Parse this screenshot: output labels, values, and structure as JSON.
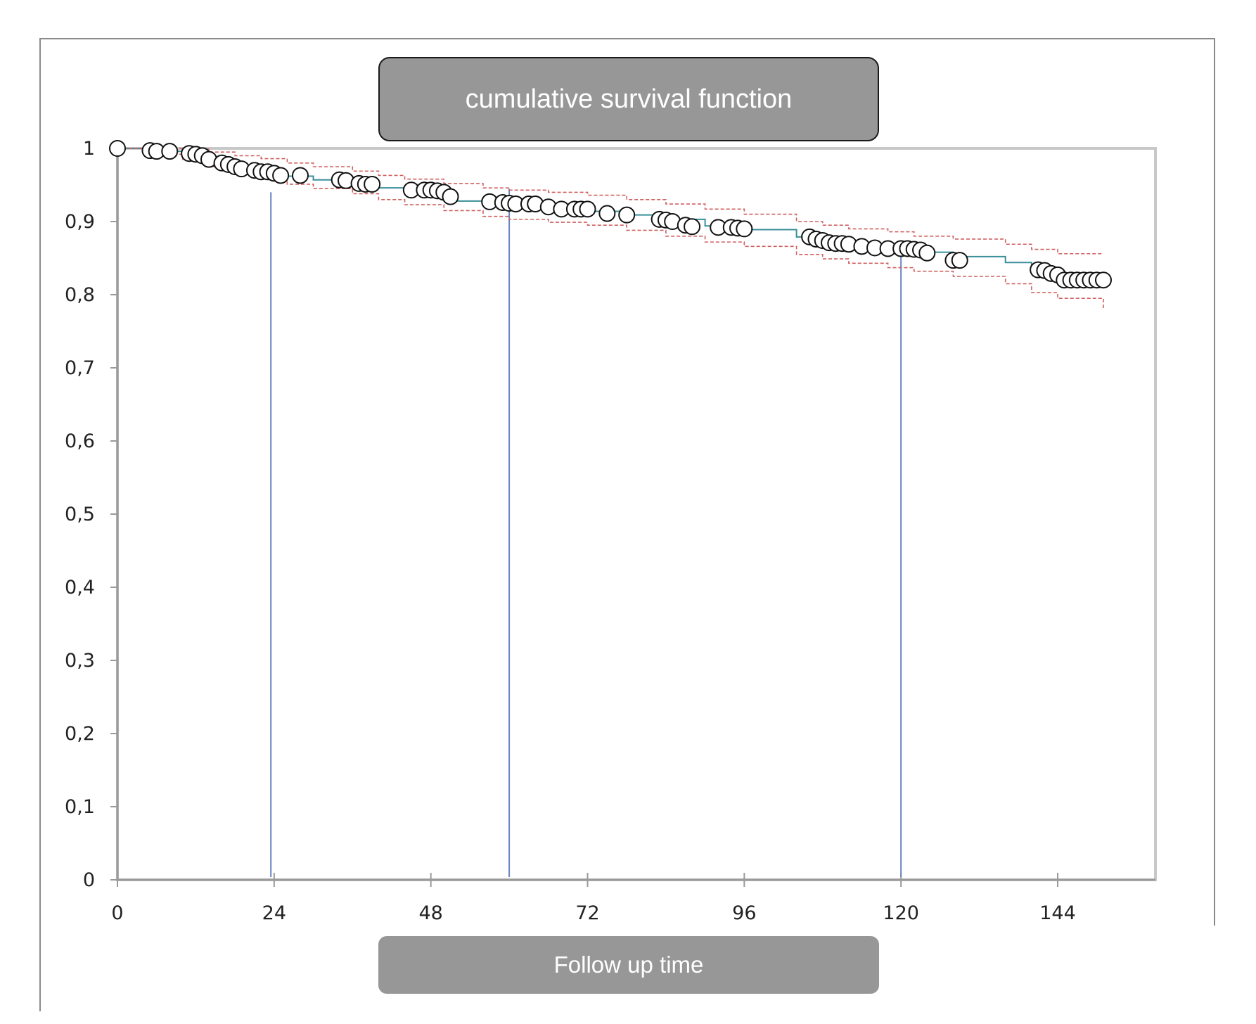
{
  "chart_data": {
    "type": "line",
    "title": "cumulative survival function",
    "xlabel": "Follow up time",
    "ylabel": "",
    "xlim": [
      0,
      160
    ],
    "ylim": [
      0,
      1
    ],
    "x_ticks": [
      0,
      24,
      48,
      72,
      96,
      120,
      144
    ],
    "x_tick_labels": [
      "0",
      "24",
      "48",
      "72",
      "96",
      "120",
      "144"
    ],
    "y_ticks": [
      0,
      0.1,
      0.2,
      0.3,
      0.4,
      0.5,
      0.6,
      0.7,
      0.8,
      0.9,
      1
    ],
    "y_tick_labels": [
      "0",
      "0,1",
      "0,2",
      "0,3",
      "0,4",
      "0,5",
      "0,6",
      "0,7",
      "0,8",
      "0,9",
      "1"
    ],
    "reference_lines_x": [
      23.5,
      60,
      120
    ],
    "colors": {
      "survival": "#3a8f9a",
      "ci": "#d06060",
      "reference": "#6b84c4",
      "marker_edge": "#111111",
      "marker_fill": "#ffffff",
      "axis": "#9a9a9a"
    },
    "series": [
      {
        "style": "step",
        "x": [
          0,
          6,
          10,
          14,
          16,
          19,
          22,
          25,
          30,
          36,
          40,
          44,
          50,
          52,
          56,
          60,
          66,
          72,
          78,
          84,
          90,
          96,
          104,
          108,
          112,
          118,
          122,
          128,
          136,
          140,
          144,
          151
        ],
        "y": [
          1.0,
          0.996,
          0.993,
          0.985,
          0.978,
          0.972,
          0.968,
          0.962,
          0.957,
          0.951,
          0.946,
          0.941,
          0.934,
          0.928,
          0.924,
          0.92,
          0.917,
          0.914,
          0.909,
          0.903,
          0.894,
          0.889,
          0.879,
          0.873,
          0.868,
          0.863,
          0.858,
          0.852,
          0.844,
          0.834,
          0.826,
          0.819
        ]
      },
      {
        "style": "dashed-step",
        "x": [
          0,
          6,
          10,
          14,
          18,
          22,
          26,
          30,
          36,
          40,
          44,
          50,
          56,
          60,
          66,
          72,
          78,
          84,
          90,
          96,
          104,
          108,
          112,
          118,
          122,
          128,
          136,
          140,
          144,
          151
        ],
        "y": [
          1.0,
          1.0,
          0.999,
          0.995,
          0.99,
          0.986,
          0.98,
          0.975,
          0.969,
          0.963,
          0.958,
          0.952,
          0.946,
          0.943,
          0.94,
          0.936,
          0.93,
          0.924,
          0.917,
          0.91,
          0.9,
          0.895,
          0.89,
          0.886,
          0.88,
          0.876,
          0.869,
          0.862,
          0.856,
          0.856
        ]
      },
      {
        "style": "dashed-step",
        "x": [
          0,
          6,
          10,
          14,
          18,
          22,
          26,
          30,
          36,
          40,
          44,
          50,
          56,
          60,
          66,
          72,
          78,
          84,
          90,
          96,
          104,
          108,
          112,
          118,
          122,
          128,
          136,
          140,
          144,
          151
        ],
        "y": [
          1.0,
          0.992,
          0.985,
          0.975,
          0.965,
          0.958,
          0.951,
          0.945,
          0.938,
          0.93,
          0.923,
          0.915,
          0.907,
          0.903,
          0.899,
          0.895,
          0.888,
          0.88,
          0.872,
          0.866,
          0.855,
          0.849,
          0.843,
          0.837,
          0.832,
          0.825,
          0.815,
          0.803,
          0.795,
          0.779
        ]
      }
    ],
    "markers": {
      "x": [
        0,
        5,
        6,
        8,
        11,
        12,
        13,
        14,
        16,
        17,
        18,
        19,
        21,
        22,
        23,
        24,
        25,
        28,
        34,
        35,
        37,
        38,
        39,
        45,
        47,
        48,
        49,
        50,
        51,
        57,
        59,
        60,
        61,
        63,
        64,
        66,
        68,
        70,
        71,
        72,
        75,
        78,
        83,
        84,
        85,
        87,
        88,
        92,
        94,
        95,
        96,
        106,
        107,
        108,
        109,
        110,
        111,
        112,
        114,
        116,
        118,
        120,
        121,
        122,
        123,
        124,
        128,
        129,
        141,
        142,
        143,
        144,
        145,
        146,
        147,
        148,
        149,
        150,
        151
      ],
      "y": [
        1.0,
        0.997,
        0.996,
        0.996,
        0.993,
        0.992,
        0.99,
        0.985,
        0.98,
        0.978,
        0.975,
        0.972,
        0.97,
        0.968,
        0.968,
        0.966,
        0.963,
        0.963,
        0.957,
        0.956,
        0.952,
        0.951,
        0.951,
        0.943,
        0.943,
        0.943,
        0.942,
        0.94,
        0.934,
        0.927,
        0.926,
        0.925,
        0.924,
        0.924,
        0.924,
        0.92,
        0.917,
        0.917,
        0.917,
        0.917,
        0.911,
        0.909,
        0.903,
        0.902,
        0.9,
        0.895,
        0.893,
        0.892,
        0.892,
        0.891,
        0.89,
        0.879,
        0.876,
        0.874,
        0.871,
        0.87,
        0.87,
        0.869,
        0.866,
        0.864,
        0.863,
        0.863,
        0.863,
        0.862,
        0.861,
        0.857,
        0.847,
        0.847,
        0.834,
        0.833,
        0.829,
        0.827,
        0.82,
        0.82,
        0.82,
        0.82,
        0.82,
        0.82,
        0.82
      ]
    }
  }
}
